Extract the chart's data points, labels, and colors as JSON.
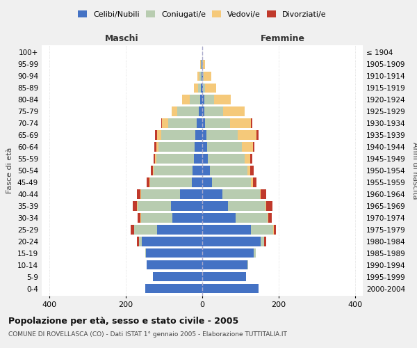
{
  "age_groups": [
    "0-4",
    "5-9",
    "10-14",
    "15-19",
    "20-24",
    "25-29",
    "30-34",
    "35-39",
    "40-44",
    "45-49",
    "50-54",
    "55-59",
    "60-64",
    "65-69",
    "70-74",
    "75-79",
    "80-84",
    "85-89",
    "90-94",
    "95-99",
    "100+"
  ],
  "birth_years": [
    "2000-2004",
    "1995-1999",
    "1990-1994",
    "1985-1989",
    "1980-1984",
    "1975-1979",
    "1970-1974",
    "1965-1969",
    "1960-1964",
    "1955-1959",
    "1950-1954",
    "1945-1949",
    "1940-1944",
    "1935-1939",
    "1930-1934",
    "1925-1929",
    "1920-1924",
    "1915-1919",
    "1910-1914",
    "1905-1909",
    "≤ 1904"
  ],
  "maschi": {
    "celibi": [
      150,
      130,
      145,
      148,
      158,
      118,
      78,
      82,
      58,
      28,
      25,
      22,
      20,
      18,
      15,
      10,
      5,
      3,
      2,
      1,
      0
    ],
    "coniugati": [
      0,
      0,
      0,
      2,
      8,
      60,
      82,
      88,
      102,
      108,
      102,
      98,
      95,
      90,
      75,
      55,
      28,
      8,
      5,
      2,
      0
    ],
    "vedovi": [
      0,
      0,
      0,
      0,
      0,
      1,
      1,
      1,
      2,
      2,
      2,
      3,
      5,
      10,
      15,
      15,
      20,
      10,
      5,
      2,
      0
    ],
    "divorziati": [
      0,
      0,
      0,
      0,
      5,
      8,
      8,
      10,
      8,
      8,
      5,
      5,
      5,
      5,
      2,
      0,
      0,
      0,
      0,
      0,
      0
    ]
  },
  "femmine": {
    "nubili": [
      148,
      115,
      118,
      135,
      152,
      128,
      88,
      68,
      52,
      26,
      20,
      15,
      12,
      10,
      8,
      5,
      5,
      2,
      1,
      0,
      0
    ],
    "coniugate": [
      0,
      0,
      2,
      5,
      10,
      58,
      82,
      98,
      98,
      102,
      98,
      95,
      92,
      82,
      65,
      50,
      25,
      5,
      3,
      2,
      0
    ],
    "vedove": [
      0,
      0,
      0,
      0,
      0,
      2,
      2,
      2,
      3,
      5,
      8,
      15,
      28,
      50,
      55,
      55,
      45,
      30,
      20,
      5,
      0
    ],
    "divorziate": [
      0,
      0,
      0,
      0,
      5,
      5,
      10,
      15,
      15,
      8,
      8,
      5,
      5,
      5,
      2,
      0,
      0,
      0,
      0,
      0,
      0
    ]
  },
  "colors": {
    "celibi_nubili": "#4472C4",
    "coniugati": "#B8CCB0",
    "vedovi": "#F5C97A",
    "divorziati": "#C0392B"
  },
  "xlim": 420,
  "title": "Popolazione per età, sesso e stato civile - 2005",
  "subtitle": "COMUNE DI ROVELLASCA (CO) - Dati ISTAT 1° gennaio 2005 - Elaborazione TUTTITALIA.IT",
  "ylabel_left": "Fasce di età",
  "ylabel_right": "Anni di nascita",
  "xlabel_left": "Maschi",
  "xlabel_right": "Femmine",
  "bg_color": "#f0f0f0",
  "plot_bg": "#ffffff"
}
